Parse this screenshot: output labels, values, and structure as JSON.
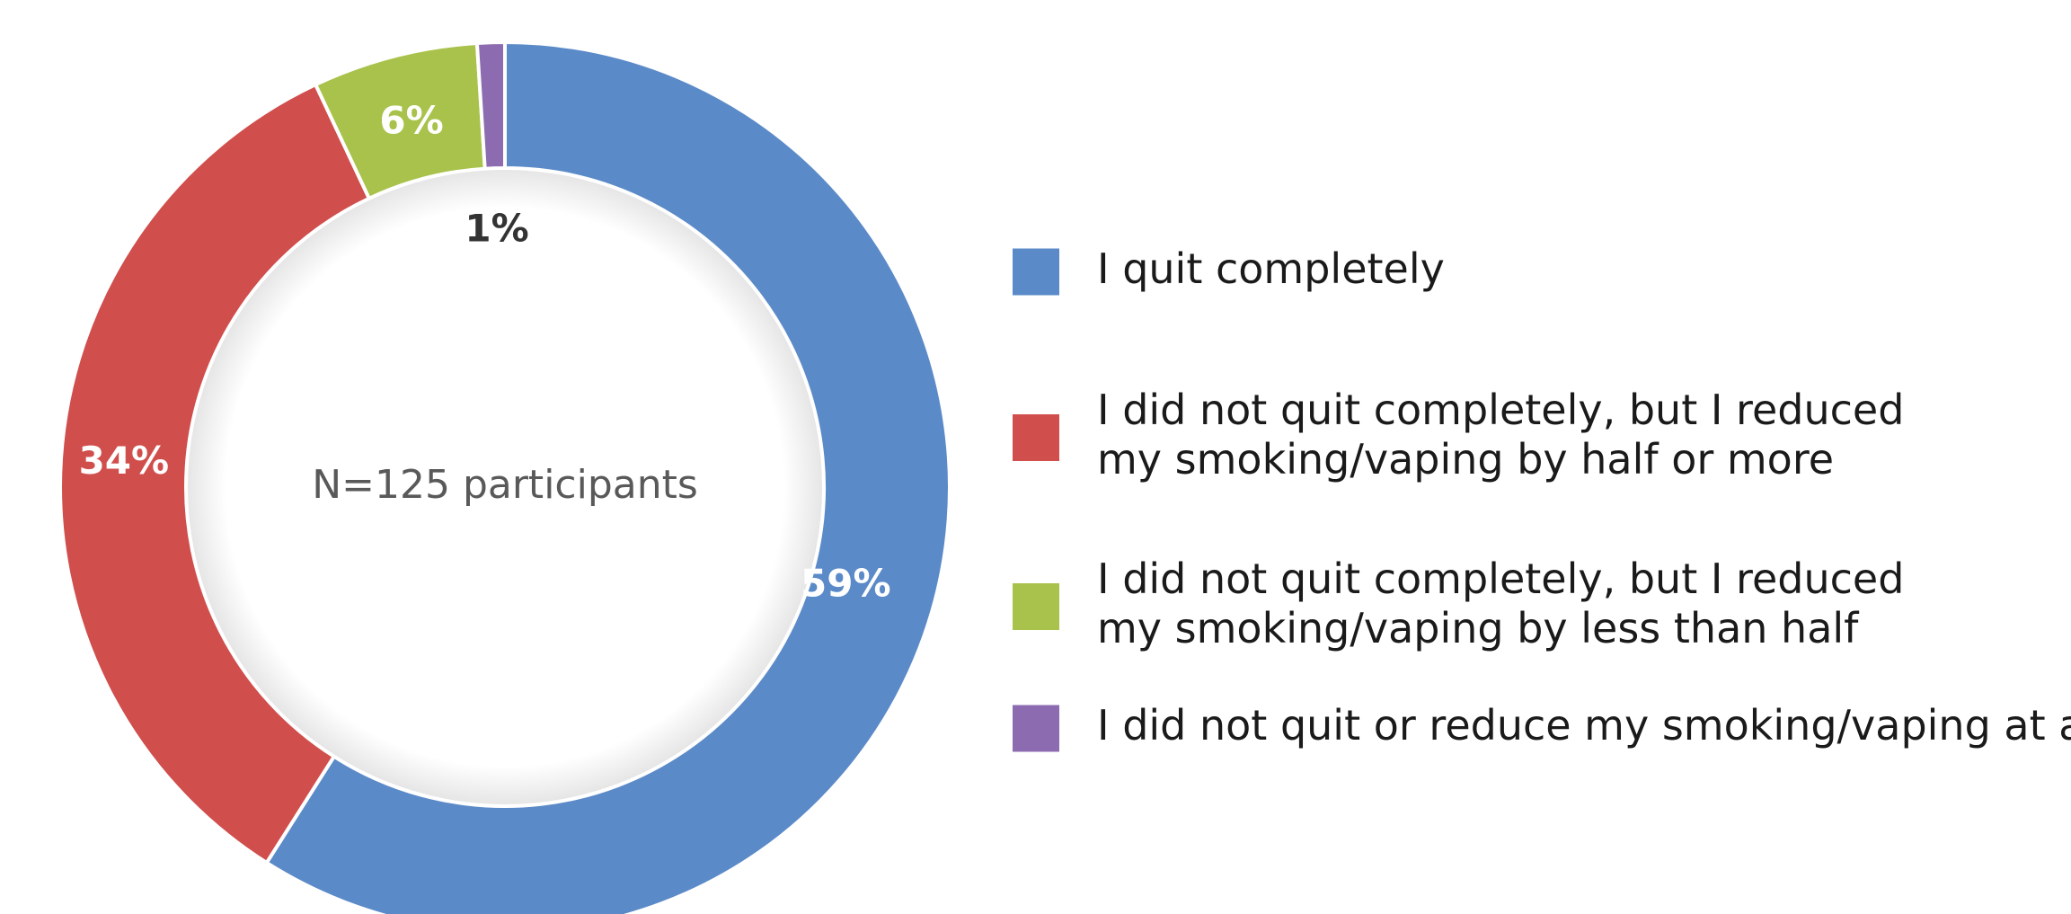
{
  "chart_data": {
    "type": "pie",
    "variant": "donut",
    "center_label": "N=125 participants",
    "slices": [
      {
        "label": "I quit completely",
        "value": 59,
        "display": "59%",
        "color": "#5B8AC8",
        "label_color": "#ffffff"
      },
      {
        "label": "I did not quit completely, but I reduced my smoking/vaping by half or more",
        "label_lines": [
          "I did not quit completely, but I reduced",
          "my smoking/vaping by half or more"
        ],
        "value": 34,
        "display": "34%",
        "color": "#D04E4C",
        "label_color": "#ffffff"
      },
      {
        "label": "I did not quit completely, but I reduced my smoking/vaping by less than half",
        "label_lines": [
          "I did not quit completely, but I reduced",
          "my smoking/vaping by less than half"
        ],
        "value": 6,
        "display": "6%",
        "color": "#A9C24B",
        "label_color": "#ffffff"
      },
      {
        "label": "I did not quit or reduce my smoking/vaping at all",
        "value": 1,
        "display": "1%",
        "color": "#8C6BB0",
        "label_color": "#333333"
      }
    ],
    "legend_position": "right"
  }
}
